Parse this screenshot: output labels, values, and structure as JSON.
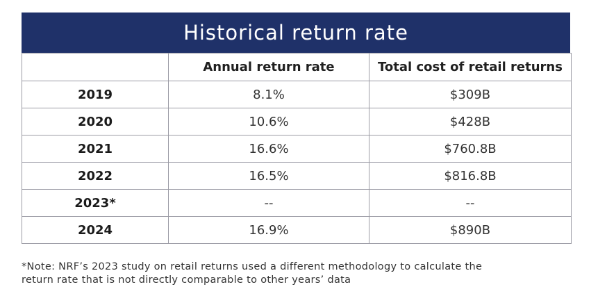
{
  "chart_data": {
    "type": "table",
    "title": "Historical return rate",
    "columns": [
      "",
      "Annual return rate",
      "Total cost of retail returns"
    ],
    "rows": [
      {
        "year": "2019",
        "return_rate": "8.1%",
        "total_cost": "$309B"
      },
      {
        "year": "2020",
        "return_rate": "10.6%",
        "total_cost": "$428B"
      },
      {
        "year": "2021",
        "return_rate": "16.6%",
        "total_cost": "$760.8B"
      },
      {
        "year": "2022",
        "return_rate": "16.5%",
        "total_cost": "$816.8B"
      },
      {
        "year": "2023*",
        "return_rate": "--",
        "total_cost": "--"
      },
      {
        "year": "2024",
        "return_rate": "16.9%",
        "total_cost": "$890B"
      }
    ],
    "footnote_lines": [
      "*Note: NRF’s 2023 study on retail returns used a different methodology to calculate the",
      "return rate that is not directly comparable to other years’ data"
    ]
  },
  "colors": {
    "header_background": "#1f3169",
    "header_text": "#ffffff",
    "border": "#9a9aa4"
  }
}
